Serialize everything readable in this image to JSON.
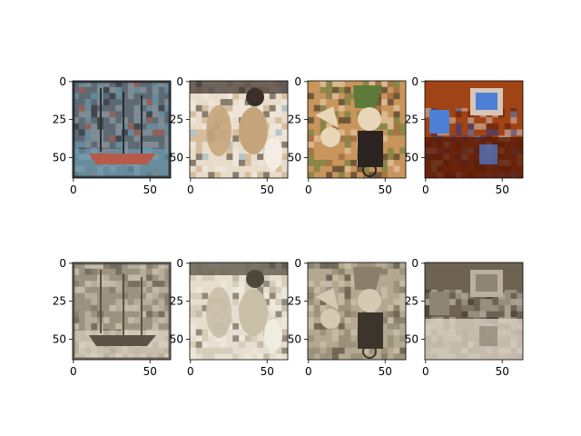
{
  "figure": {
    "description_kind": "matplotlib imshow grid",
    "background": "#ffffff",
    "axis_color": "#000000"
  },
  "chart_data": [
    {
      "type": "image",
      "name": "ship-original",
      "row": 0,
      "col": 0,
      "xlim": [
        0,
        63
      ],
      "ylim": [
        63,
        0
      ],
      "xticks": [
        0,
        50
      ],
      "yticks": [
        0,
        25,
        50
      ],
      "palette": [
        "#5d6a74",
        "#9aa6ae",
        "#2a2d31",
        "#6fa3b8",
        "#b85a4a"
      ],
      "effect": "color"
    },
    {
      "type": "image",
      "name": "woman-dogs-original",
      "row": 0,
      "col": 1,
      "xlim": [
        0,
        63
      ],
      "ylim": [
        63,
        0
      ],
      "xticks": [
        0,
        50
      ],
      "yticks": [
        0,
        25,
        50
      ],
      "palette": [
        "#e8dccb",
        "#c7a57c",
        "#3a2f29",
        "#f3ede3",
        "#8ab0c8"
      ],
      "effect": "color"
    },
    {
      "type": "image",
      "name": "dolls-original",
      "row": 0,
      "col": 2,
      "xlim": [
        0,
        63
      ],
      "ylim": [
        63,
        0
      ],
      "xticks": [
        0,
        50
      ],
      "yticks": [
        0,
        25,
        50
      ],
      "palette": [
        "#c8955c",
        "#5d7a3a",
        "#2b2420",
        "#e9d6b8",
        "#8c5a34"
      ],
      "effect": "color"
    },
    {
      "type": "image",
      "name": "computer-original",
      "row": 0,
      "col": 3,
      "xlim": [
        0,
        63
      ],
      "ylim": [
        63,
        0
      ],
      "xticks": [
        0,
        50
      ],
      "yticks": [
        0,
        25,
        50
      ],
      "palette": [
        "#a04416",
        "#d6c6b8",
        "#2a3a8a",
        "#5a1c08",
        "#4d7fd6"
      ],
      "effect": "color"
    },
    {
      "type": "image",
      "name": "ship-sepia",
      "row": 1,
      "col": 0,
      "xlim": [
        0,
        63
      ],
      "ylim": [
        63,
        0
      ],
      "xticks": [
        0,
        50
      ],
      "yticks": [
        0,
        25,
        50
      ],
      "palette": [
        "#9c9280",
        "#cbc2b0",
        "#5a5346",
        "#e2dac9",
        "#7a7161"
      ],
      "effect": "sepia"
    },
    {
      "type": "image",
      "name": "woman-dogs-sepia",
      "row": 1,
      "col": 1,
      "xlim": [
        0,
        63
      ],
      "ylim": [
        63,
        0
      ],
      "xticks": [
        0,
        50
      ],
      "yticks": [
        0,
        25,
        50
      ],
      "palette": [
        "#e6dfcf",
        "#c9bfa9",
        "#4e473b",
        "#f1ece0",
        "#a89e88"
      ],
      "effect": "sepia"
    },
    {
      "type": "image",
      "name": "dolls-sepia",
      "row": 1,
      "col": 2,
      "xlim": [
        0,
        63
      ],
      "ylim": [
        63,
        0
      ],
      "xticks": [
        0,
        50
      ],
      "yticks": [
        0,
        25,
        50
      ],
      "palette": [
        "#b3a890",
        "#8a7f6b",
        "#3b352c",
        "#d4cab3",
        "#6c6352"
      ],
      "effect": "sepia"
    },
    {
      "type": "image",
      "name": "computer-sepia",
      "row": 1,
      "col": 3,
      "xlim": [
        0,
        63
      ],
      "ylim": [
        63,
        0
      ],
      "xticks": [
        0,
        50
      ],
      "yticks": [
        0,
        25,
        50
      ],
      "palette": [
        "#6e6353",
        "#b9b0a0",
        "#3d362c",
        "#d9d2c4",
        "#8f8574"
      ],
      "effect": "sepia"
    }
  ]
}
